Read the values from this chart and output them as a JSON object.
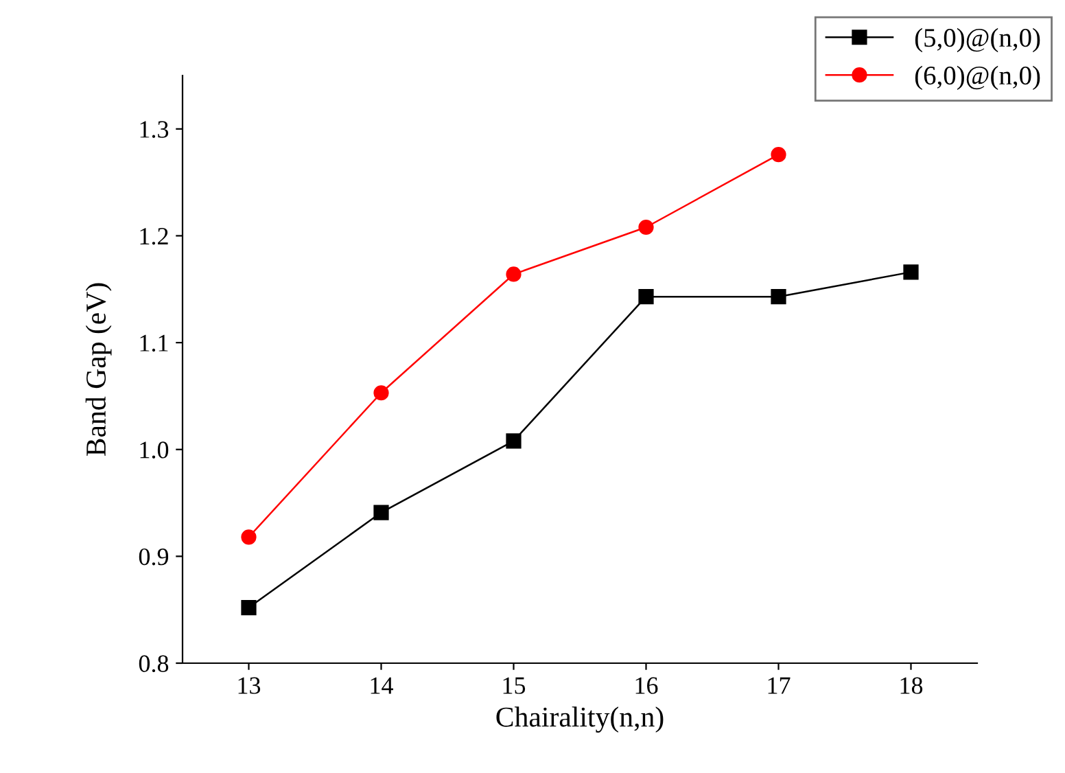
{
  "chart_data": {
    "type": "line",
    "xlabel": "Chairality(n,n)",
    "ylabel": "Band Gap (eV)",
    "x": [
      13,
      14,
      15,
      16,
      17,
      18
    ],
    "series": [
      {
        "name": "(5,0)@(n,0)",
        "color": "#000000",
        "marker": "square",
        "values": [
          0.852,
          0.941,
          1.008,
          1.143,
          1.143,
          1.166
        ]
      },
      {
        "name": "(6,0)@(n,0)",
        "color": "#ff0000",
        "marker": "circle",
        "values": [
          0.918,
          1.053,
          1.164,
          1.208,
          1.276,
          null
        ]
      }
    ],
    "xlim": [
      12.5,
      18.5
    ],
    "xticks": [
      13,
      14,
      15,
      16,
      17,
      18
    ],
    "ylim": [
      0.8,
      1.35
    ],
    "yticks": [
      0.8,
      0.9,
      {
        "value": 1,
        "label": "1.0"
      },
      1.1,
      1.2,
      1.3
    ],
    "grid": false,
    "legend": "top right"
  }
}
